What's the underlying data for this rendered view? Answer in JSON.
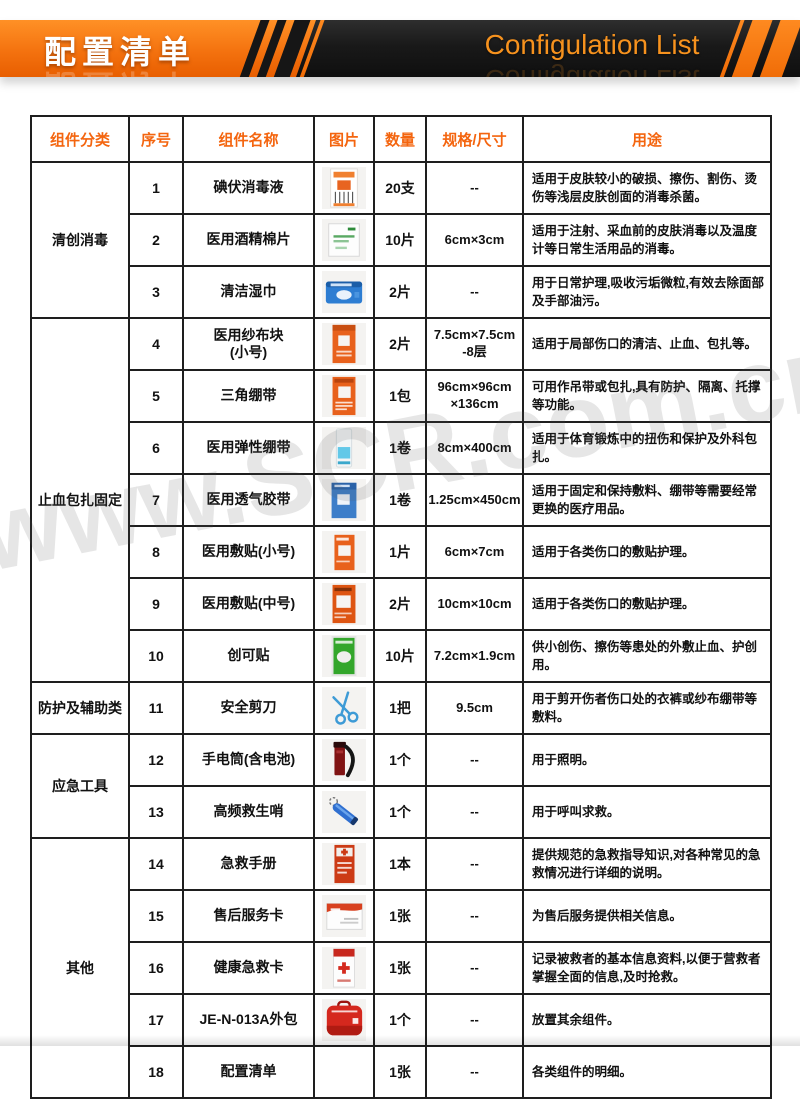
{
  "banner": {
    "title_cn": "配置清单",
    "title_en": "Configulation List"
  },
  "watermark": "www.SCR.com.cn",
  "colors": {
    "banner_orange": "#f4720f",
    "banner_dark": "#1b1b1b",
    "header_text_orange": "#f4650f",
    "table_border": "#1e1e1e",
    "watermark_gray": "rgba(85,85,85,0.15)"
  },
  "table": {
    "headers": [
      "组件分类",
      "序号",
      "组件名称",
      "图片",
      "数量",
      "规格/尺寸",
      "用途"
    ],
    "groups": [
      {
        "label": "清创消毒",
        "count": 3
      },
      {
        "label": "止血包扎固定",
        "count": 7
      },
      {
        "label": "防护及辅助类",
        "count": 1
      },
      {
        "label": "应急工具",
        "count": 2
      },
      {
        "label": "其他",
        "count": 5
      }
    ],
    "rows": [
      {
        "no": "1",
        "name": "碘伏消毒液",
        "icon": "iodine-swabs",
        "qty": "20支",
        "spec": "--",
        "use": "适用于皮肤较小的破损、擦伤、割伤、烫伤等浅层皮肤创面的消毒杀菌。"
      },
      {
        "no": "2",
        "name": "医用酒精棉片",
        "icon": "alcohol-pads",
        "qty": "10片",
        "spec": "6cm×3cm",
        "use": "适用于注射、采血前的皮肤消毒以及温度计等日常生活用品的消毒。"
      },
      {
        "no": "3",
        "name": "清洁湿巾",
        "icon": "wet-wipes",
        "qty": "2片",
        "spec": "--",
        "use": "用于日常护理,吸收污垢微粒,有效去除面部及手部油污。"
      },
      {
        "no": "4",
        "name": "医用纱布块\n(小号)",
        "icon": "gauze-pad",
        "qty": "2片",
        "spec": "7.5cm×7.5cm\n-8层",
        "use": "适用于局部伤口的清洁、止血、包扎等。"
      },
      {
        "no": "5",
        "name": "三角绷带",
        "icon": "triangular-bandage",
        "qty": "1包",
        "spec": "96cm×96cm\n×136cm",
        "use": "可用作吊带或包扎,具有防护、隔离、托撑等功能。"
      },
      {
        "no": "6",
        "name": "医用弹性绷带",
        "icon": "elastic-bandage",
        "qty": "1卷",
        "spec": "8cm×400cm",
        "use": "适用于体育锻炼中的扭伤和保护及外科包扎。"
      },
      {
        "no": "7",
        "name": "医用透气胶带",
        "icon": "breathable-tape",
        "qty": "1卷",
        "spec": "1.25cm×450cm",
        "use": "适用于固定和保持敷料、绷带等需要经常更换的医疗用品。"
      },
      {
        "no": "8",
        "name": "医用敷贴(小号)",
        "icon": "dressing-small",
        "qty": "1片",
        "spec": "6cm×7cm",
        "use": "适用于各类伤口的敷贴护理。"
      },
      {
        "no": "9",
        "name": "医用敷贴(中号)",
        "icon": "dressing-medium",
        "qty": "2片",
        "spec": "10cm×10cm",
        "use": "适用于各类伤口的敷贴护理。"
      },
      {
        "no": "10",
        "name": "创可贴",
        "icon": "band-aid",
        "qty": "10片",
        "spec": "7.2cm×1.9cm",
        "use": "供小创伤、擦伤等患处的外敷止血、护创用。"
      },
      {
        "no": "11",
        "name": "安全剪刀",
        "icon": "safety-scissors",
        "qty": "1把",
        "spec": "9.5cm",
        "use": "用于剪开伤者伤口处的衣裤或纱布绷带等敷料。"
      },
      {
        "no": "12",
        "name": "手电筒(含电池)",
        "icon": "flashlight",
        "qty": "1个",
        "spec": "--",
        "use": "用于照明。"
      },
      {
        "no": "13",
        "name": "高频救生哨",
        "icon": "whistle",
        "qty": "1个",
        "spec": "--",
        "use": "用于呼叫求救。"
      },
      {
        "no": "14",
        "name": "急救手册",
        "icon": "first-aid-manual",
        "qty": "1本",
        "spec": "--",
        "use": "提供规范的急救指导知识,对各种常见的急救情况进行详细的说明。"
      },
      {
        "no": "15",
        "name": "售后服务卡",
        "icon": "service-card",
        "qty": "1张",
        "spec": "--",
        "use": "为售后服务提供相关信息。"
      },
      {
        "no": "16",
        "name": "健康急救卡",
        "icon": "health-card",
        "qty": "1张",
        "spec": "--",
        "use": "记录被救者的基本信息资料,以便于营救者掌握全面的信息,及时抢救。"
      },
      {
        "no": "17",
        "name": "JE-N-013A外包",
        "icon": "outer-bag",
        "qty": "1个",
        "spec": "--",
        "use": "放置其余组件。"
      },
      {
        "no": "18",
        "name": "配置清单",
        "icon": "none",
        "qty": "1张",
        "spec": "--",
        "use": "各类组件的明细。"
      }
    ]
  }
}
